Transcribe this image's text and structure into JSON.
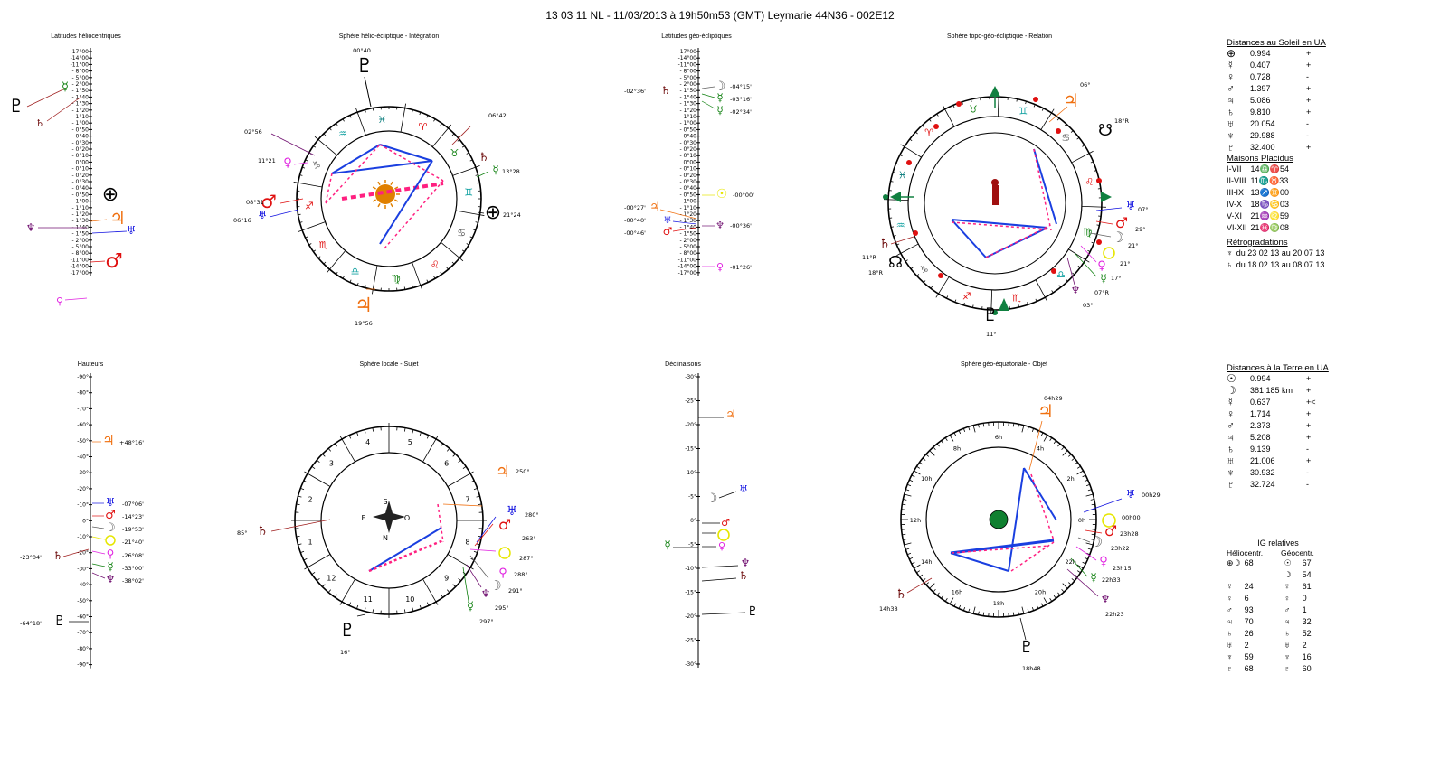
{
  "header": {
    "title": "13 03 11 NL    -   11/03/2013 à 19h50m53 (GMT)  Leymarie  44N36 - 002E12"
  },
  "panels": {
    "lat_helio": "Latitudes héliocentriques",
    "sphere_helio": "Sphère hélio-écliptique - Intégration",
    "lat_geo": "Latitudes géo-écliptiques",
    "sphere_topo": "Sphère topo-géo-écliptique - Relation",
    "hauteurs": "Hauteurs",
    "sphere_locale": "Sphère locale - Sujet",
    "declinaisons": "Déclinaisons",
    "sphere_equat": "Sphère géo-équatoriale - Objet"
  },
  "lat_scale": [
    "-17°00",
    "-14°00",
    "-11°00",
    "- 8°00",
    "- 5°00",
    "- 2°00",
    "- 1°50",
    "- 1°40",
    "- 1°30",
    "- 1°20",
    "- 1°10",
    "- 1°00",
    "- 0°50",
    "- 0°40",
    "- 0°30",
    "- 0°20",
    "- 0°10",
    "0°00",
    "- 0°10",
    "- 0°20",
    "- 0°30",
    "- 0°40",
    "- 0°50",
    "- 1°00",
    "- 1°10",
    "- 1°20",
    "- 1°30",
    "- 1°40",
    "- 1°50",
    "- 2°00",
    "- 5°00",
    "- 8°00",
    "-11°00",
    "-14°00",
    "-17°00"
  ],
  "haut_scale": [
    "-90°",
    "-80°",
    "-70°",
    "-60°",
    "-50°",
    "-40°",
    "-30°",
    "-20°",
    "-10°",
    "0°",
    "-10°",
    "-20°",
    "-30°",
    "-40°",
    "-50°",
    "-60°",
    "-70°",
    "-80°",
    "-90°"
  ],
  "decl_scale": [
    "-30°",
    "-25°",
    "-20°",
    "-15°",
    "-10°",
    "-5°",
    "0°",
    "-5°",
    "-10°",
    "-15°",
    "-20°",
    "-25°",
    "-30°"
  ],
  "lat_geo_labels": {
    "moon": "-04°15'",
    "mercury": "-03°16'",
    "mercury2": "-02°34'",
    "saturn": "-02°36'",
    "sun": "-00°00'",
    "jupiter": "-00°27'",
    "uranus": "-00°40'",
    "mars": "-00°46'",
    "neptune": "-00°36'",
    "venus": "-01°26'"
  },
  "helio_sphere_labels": {
    "pluto": "00°40",
    "saturn": "06°42",
    "neptune": "02°56",
    "venus": "11°21",
    "mars": "08°31",
    "uranus": "06°16",
    "mercury": "13°28",
    "earth": "21°24",
    "jupiter": "19°56"
  },
  "topo_labels": {
    "jupiter": "06°",
    "moon_node": "18°R",
    "uranus": "07°",
    "mars": "29°",
    "moon": "21°",
    "venus": "21°",
    "mercury": "17°",
    "neptune": "07°R",
    "neptune2": "03°",
    "saturn": "11°R",
    "node": "18°R",
    "pluto": "11°"
  },
  "haut_labels": {
    "jupiter": "+48°16'",
    "uranus": "-07°06'",
    "mars": "-14°23'",
    "moon": "-19°53'",
    "sun": "-21°40'",
    "saturn": "-23°04'",
    "venus": "-26°08'",
    "mercury": "-33°00'",
    "neptune": "-38°02'",
    "pluto": "-64°18'"
  },
  "locale_labels": {
    "jupiter": "250°",
    "saturn": "85°",
    "uranus": "280°",
    "mars": "263°",
    "sun": "287°",
    "venus": "288°",
    "moon": "291°",
    "neptune": "295°",
    "mercury": "297°",
    "pluto": "16°"
  },
  "compass": {
    "n": "N",
    "s": "S",
    "e": "E",
    "o": "O"
  },
  "equat_labels": {
    "jupiter": "04h29",
    "uranus": "00h29",
    "sun": "00h00",
    "mars": "23h28",
    "moon": "23h22",
    "venus": "23h15",
    "mercury": "22h33",
    "neptune": "22h23",
    "saturn": "14h38",
    "pluto": "18h48"
  },
  "hours": [
    "0h",
    "2h",
    "4h",
    "6h",
    "8h",
    "10h",
    "12h",
    "14h",
    "16h",
    "18h",
    "20h",
    "22h"
  ],
  "houses": [
    "1",
    "2",
    "3",
    "4",
    "5",
    "6",
    "7",
    "8",
    "9",
    "10",
    "11",
    "12"
  ],
  "distances_soleil": {
    "title": "Distances au Soleil en UA",
    "rows": [
      {
        "g": "⊕",
        "v": "0.994",
        "s": "+"
      },
      {
        "g": "☿",
        "v": "0.407",
        "s": "+"
      },
      {
        "g": "♀",
        "v": "0.728",
        "s": "-"
      },
      {
        "g": "♂",
        "v": "1.397",
        "s": "+"
      },
      {
        "g": "♃",
        "v": "5.086",
        "s": "+"
      },
      {
        "g": "♄",
        "v": "9.810",
        "s": "+"
      },
      {
        "g": "♅",
        "v": "20.054",
        "s": "-"
      },
      {
        "g": "♆",
        "v": "29.988",
        "s": "-"
      },
      {
        "g": "♇",
        "v": "32.400",
        "s": "+"
      }
    ]
  },
  "maisons": {
    "title": "Maisons Placidus",
    "rows": [
      {
        "k": "I-VII",
        "v": "14♎♈54"
      },
      {
        "k": "II-VIII",
        "v": "11♏♉33"
      },
      {
        "k": "III-IX",
        "v": "13♐♊00"
      },
      {
        "k": "IV-X",
        "v": "18♑♋03"
      },
      {
        "k": "V-XI",
        "v": "21♒♌59"
      },
      {
        "k": "VI-XII",
        "v": "21♓♍08"
      }
    ]
  },
  "retro": {
    "title": "Rétrogradations",
    "rows": [
      {
        "g": "♆",
        "v": "du 23 02 13 au 20 07 13"
      },
      {
        "g": "♄",
        "v": "du 18 02 13 au 08 07 13"
      }
    ]
  },
  "distances_terre": {
    "title": "Distances à la Terre en UA",
    "rows": [
      {
        "g": "☉",
        "v": "0.994",
        "s": "+"
      },
      {
        "g": "☽",
        "v": "381 185 km",
        "s": "+"
      },
      {
        "g": "☿",
        "v": "0.637",
        "s": "+<"
      },
      {
        "g": "♀",
        "v": "1.714",
        "s": "+"
      },
      {
        "g": "♂",
        "v": "2.373",
        "s": "+"
      },
      {
        "g": "♃",
        "v": "5.208",
        "s": "+"
      },
      {
        "g": "♄",
        "v": "9.139",
        "s": "-"
      },
      {
        "g": "♅",
        "v": "21.006",
        "s": "+"
      },
      {
        "g": "♆",
        "v": "30.932",
        "s": "-"
      },
      {
        "g": "♇",
        "v": "32.724",
        "s": "-"
      }
    ]
  },
  "ig": {
    "title": "IG relatives",
    "col1": "Héliocentr.",
    "col2": "Géocentr.",
    "rows": [
      {
        "g1": "⊕☽",
        "v1": "68",
        "g2": "☉",
        "v2": "67"
      },
      {
        "g1": "",
        "v1": "",
        "g2": "☽",
        "v2": "54"
      },
      {
        "g1": "☿",
        "v1": "24",
        "g2": "☿",
        "v2": "61"
      },
      {
        "g1": "♀",
        "v1": "6",
        "g2": "♀",
        "v2": "0"
      },
      {
        "g1": "♂",
        "v1": "93",
        "g2": "♂",
        "v2": "1"
      },
      {
        "g1": "♃",
        "v1": "70",
        "g2": "♃",
        "v2": "32"
      },
      {
        "g1": "♄",
        "v1": "26",
        "g2": "♄",
        "v2": "52"
      },
      {
        "g1": "♅",
        "v1": "2",
        "g2": "♅",
        "v2": "2"
      },
      {
        "g1": "♆",
        "v1": "59",
        "g2": "♆",
        "v2": "16"
      },
      {
        "g1": "♇",
        "v1": "68",
        "g2": "♇",
        "v2": "60"
      }
    ]
  },
  "glyphs": {
    "sun": "☉",
    "moon": "☽",
    "mercury": "☿",
    "venus": "♀",
    "earth": "⊕",
    "mars": "♂",
    "jupiter": "♃",
    "saturn": "♄",
    "uranus": "♅",
    "neptune": "♆",
    "pluto": "♇",
    "node": "☊",
    "node_s": "☋",
    "zodiac": [
      "♈",
      "♉",
      "♊",
      "♋",
      "♌",
      "♍",
      "♎",
      "♏",
      "♐",
      "♑",
      "♒",
      "♓"
    ]
  },
  "colors": {
    "sun": "#e6e600",
    "moon": "#606060",
    "mercury": "#108010",
    "venus": "#e020e0",
    "mars": "#e01010",
    "jupiter": "#f07010",
    "saturn": "#701010",
    "uranus": "#1010e0",
    "neptune": "#701070",
    "pluto": "#000000",
    "earth": "#000000",
    "aspect_blue": "#1a3fe0",
    "aspect_red": "#ff2080"
  }
}
